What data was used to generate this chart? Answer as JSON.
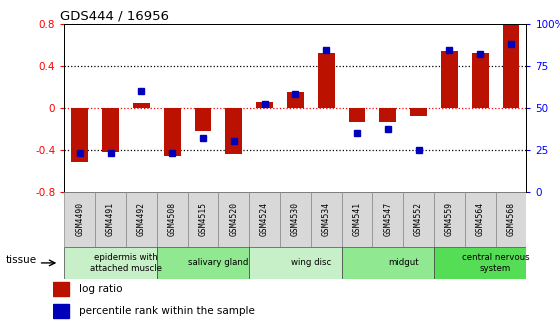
{
  "title": "GDS444 / 16956",
  "samples": [
    "GSM4490",
    "GSM4491",
    "GSM4492",
    "GSM4508",
    "GSM4515",
    "GSM4520",
    "GSM4524",
    "GSM4530",
    "GSM4534",
    "GSM4541",
    "GSM4547",
    "GSM4552",
    "GSM4559",
    "GSM4564",
    "GSM4568"
  ],
  "log_ratio": [
    -0.52,
    -0.42,
    0.04,
    -0.46,
    -0.22,
    -0.44,
    0.05,
    0.15,
    0.52,
    -0.14,
    -0.14,
    -0.08,
    0.54,
    0.52,
    0.79
  ],
  "percentile": [
    23,
    23,
    60,
    23,
    32,
    30,
    52,
    58,
    84,
    35,
    37,
    25,
    84,
    82,
    88
  ],
  "tissues": [
    {
      "label": "epidermis with\nattached muscle",
      "start": 0,
      "end": 3,
      "color": "#c8f0c8"
    },
    {
      "label": "salivary gland",
      "start": 3,
      "end": 6,
      "color": "#90e890"
    },
    {
      "label": "wing disc",
      "start": 6,
      "end": 9,
      "color": "#c8f0c8"
    },
    {
      "label": "midgut",
      "start": 9,
      "end": 12,
      "color": "#90e890"
    },
    {
      "label": "central nervous\nsystem",
      "start": 12,
      "end": 15,
      "color": "#55dd55"
    }
  ],
  "bar_color": "#bb1100",
  "dot_color": "#0000bb",
  "ylim_left": [
    -0.8,
    0.8
  ],
  "ylim_right": [
    0,
    100
  ],
  "yticks_left": [
    -0.8,
    -0.4,
    0.0,
    0.4,
    0.8
  ],
  "yticks_right": [
    0,
    25,
    50,
    75,
    100
  ],
  "ytick_labels_right": [
    "0",
    "25",
    "50",
    "75",
    "100%"
  ],
  "grid_values": [
    -0.4,
    0.0,
    0.4
  ],
  "legend_log_ratio": "log ratio",
  "legend_percentile": "percentile rank within the sample",
  "tissue_label": "tissue",
  "bar_width": 0.55
}
